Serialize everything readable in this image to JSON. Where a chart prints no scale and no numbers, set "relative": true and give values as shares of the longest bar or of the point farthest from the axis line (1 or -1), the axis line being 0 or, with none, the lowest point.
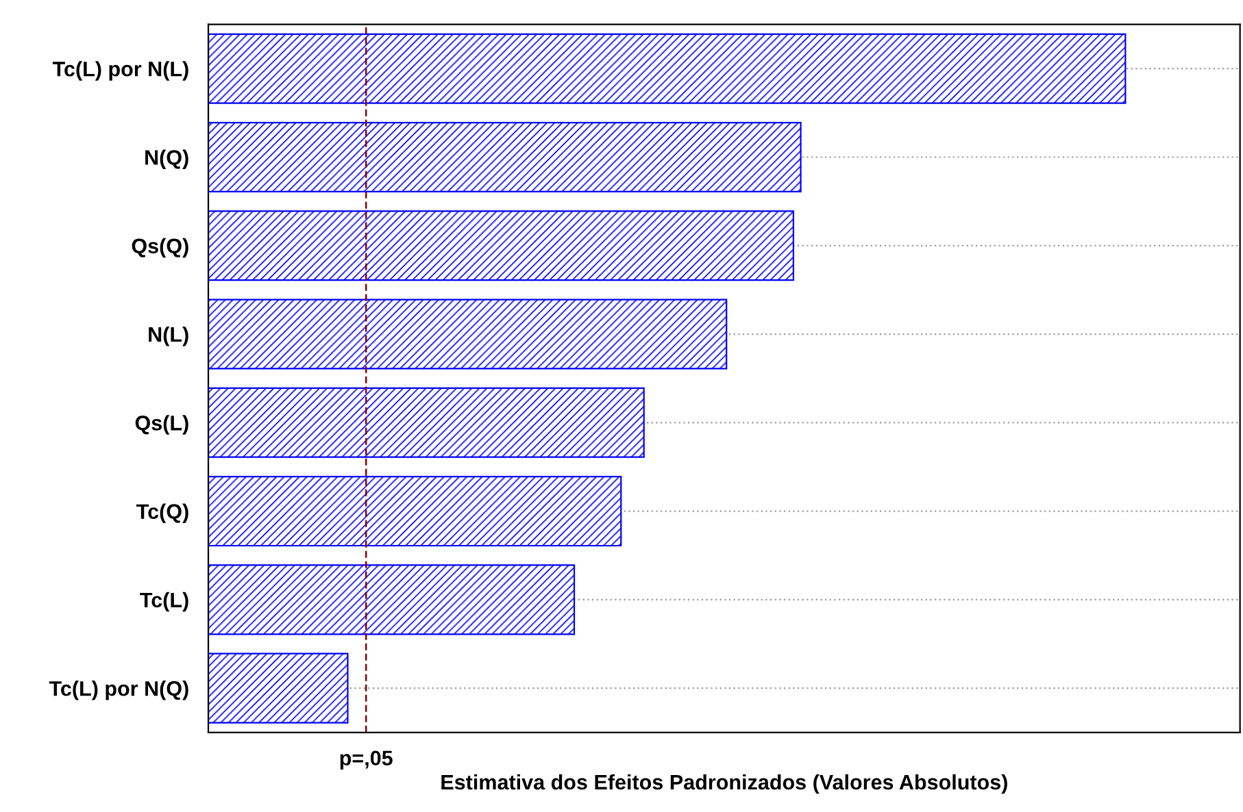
{
  "chart_data": {
    "type": "bar",
    "orientation": "horizontal",
    "relative": true,
    "xlabel": "Estimativa dos Efeitos Padronizados (Valores Absolutos)",
    "categories": [
      "Tc(L) por N(L)",
      "N(Q)",
      "Qs(Q)",
      "N(L)",
      "Qs(L)",
      "Tc(Q)",
      "Tc(L)",
      "Tc(L) por N(Q)"
    ],
    "values": [
      1,
      0.646,
      0.638,
      0.565,
      0.475,
      0.45,
      0.399,
      0.152
    ],
    "color": "#0000ff",
    "grid": "y",
    "ref_lines": [
      {
        "axis": "x",
        "value": 0.172,
        "label": "p=,05",
        "color": "#8b0000",
        "line_style": "dashed"
      }
    ]
  }
}
